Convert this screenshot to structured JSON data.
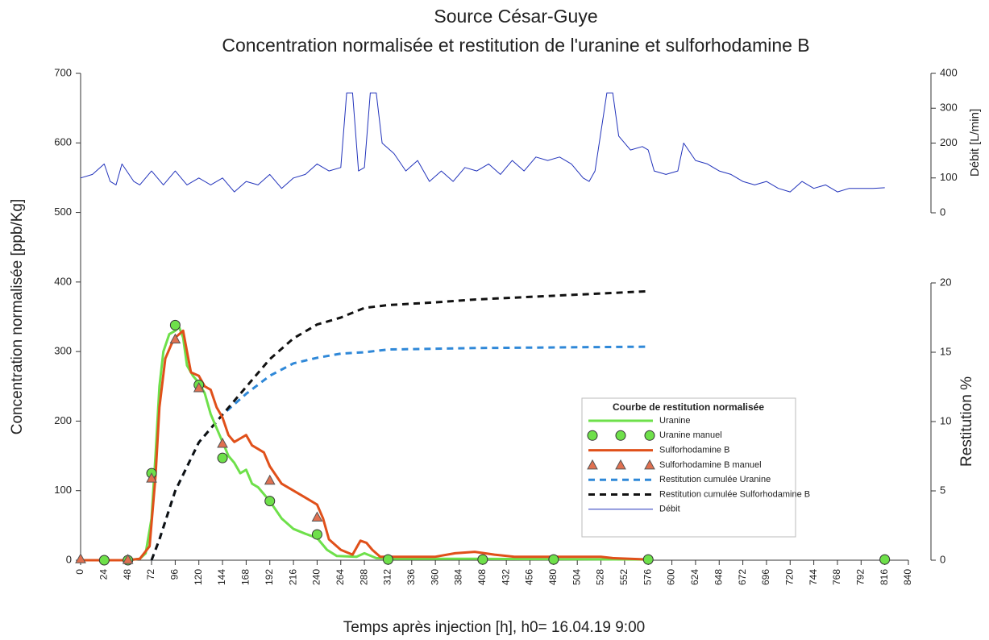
{
  "chart_data": {
    "type": "line",
    "title": "Source César-Guye",
    "subtitle": "Concentration normalisée et restitution de l'uranine et sulforhodamine B",
    "x_label": "Temps après injection [h], h0= 16.04.19 9:00",
    "y_label": "Concentration normalisée [ppb/Kg]",
    "y2_label": "Restitution %",
    "y3_label": "Débit [L/min]",
    "legend_title": "Courbe de restitution normalisée",
    "xlim": [
      0,
      840
    ],
    "xticks": [
      0,
      24,
      48,
      72,
      96,
      120,
      144,
      168,
      192,
      216,
      240,
      264,
      288,
      312,
      336,
      360,
      384,
      408,
      432,
      456,
      480,
      504,
      528,
      552,
      576,
      600,
      624,
      648,
      672,
      696,
      720,
      744,
      768,
      792,
      816,
      840
    ],
    "ylim": [
      0,
      700
    ],
    "yticks": [
      0,
      100,
      200,
      300,
      400,
      500,
      600,
      700
    ],
    "y2lim": [
      0,
      20
    ],
    "y2ticks": [
      0,
      5,
      10,
      15,
      20
    ],
    "y3lim": [
      0,
      400
    ],
    "y3ticks": [
      0,
      100,
      200,
      300,
      400
    ],
    "series": [
      {
        "name": "Uranine",
        "color": "#6ee04a",
        "style": "line",
        "x": [
          0,
          48,
          60,
          66,
          72,
          76,
          80,
          84,
          90,
          96,
          100,
          104,
          108,
          114,
          120,
          126,
          132,
          138,
          144,
          150,
          156,
          162,
          168,
          174,
          180,
          192,
          204,
          216,
          228,
          240,
          250,
          260,
          280,
          288,
          300,
          320,
          400,
          576
        ],
        "values": [
          0,
          0,
          2,
          10,
          60,
          150,
          250,
          300,
          325,
          330,
          335,
          320,
          280,
          265,
          255,
          240,
          210,
          190,
          170,
          150,
          140,
          125,
          130,
          110,
          105,
          85,
          60,
          45,
          38,
          32,
          15,
          6,
          5,
          10,
          3,
          2,
          2,
          1
        ]
      },
      {
        "name": "Uranine manuel",
        "color": "#6ee04a",
        "style": "circle",
        "x": [
          24,
          48,
          72,
          96,
          120,
          144,
          192,
          240,
          312,
          408,
          480,
          576,
          816
        ],
        "values": [
          0,
          0,
          125,
          338,
          252,
          147,
          85,
          37,
          1,
          1,
          1,
          1,
          1
        ]
      },
      {
        "name": "Sulforhodamine B",
        "color": "#e0501a",
        "style": "line",
        "x": [
          0,
          48,
          60,
          70,
          76,
          80,
          86,
          92,
          96,
          100,
          104,
          108,
          112,
          120,
          126,
          132,
          138,
          144,
          150,
          156,
          162,
          168,
          174,
          180,
          186,
          192,
          204,
          216,
          228,
          240,
          246,
          252,
          264,
          276,
          284,
          290,
          296,
          304,
          360,
          380,
          400,
          420,
          440,
          528,
          540,
          576
        ],
        "values": [
          0,
          0,
          2,
          20,
          120,
          220,
          290,
          310,
          320,
          325,
          330,
          300,
          270,
          265,
          250,
          245,
          220,
          205,
          180,
          170,
          175,
          180,
          165,
          160,
          155,
          135,
          110,
          100,
          90,
          80,
          60,
          30,
          15,
          8,
          28,
          25,
          15,
          5,
          5,
          10,
          12,
          8,
          5,
          5,
          3,
          1
        ]
      },
      {
        "name": "Sulforhodamine B manuel",
        "color": "#e07050",
        "style": "triangle",
        "x": [
          0,
          48,
          72,
          96,
          120,
          144,
          192,
          240
        ],
        "values": [
          2,
          1,
          118,
          318,
          248,
          168,
          115,
          62
        ]
      },
      {
        "name": "Restitution cumulée Uranine",
        "color": "#2f88d8",
        "style": "dashed",
        "axis": "y2",
        "x": [
          72,
          80,
          96,
          120,
          144,
          168,
          192,
          216,
          240,
          264,
          288,
          312,
          400,
          576
        ],
        "values": [
          0,
          1.5,
          5,
          8.5,
          10.5,
          12,
          13.3,
          14.2,
          14.6,
          14.9,
          15,
          15.2,
          15.3,
          15.4
        ]
      },
      {
        "name": "Restitution cumulée Sulforhodamine B",
        "color": "#111111",
        "style": "dashed",
        "axis": "y2",
        "x": [
          72,
          80,
          96,
          120,
          144,
          168,
          192,
          216,
          240,
          264,
          288,
          312,
          360,
          400,
          576
        ],
        "values": [
          0,
          1.5,
          5,
          8.5,
          10.5,
          12.5,
          14.5,
          16,
          17,
          17.5,
          18.2,
          18.4,
          18.6,
          18.8,
          19.4
        ]
      },
      {
        "name": "Débit",
        "color": "#2233bb",
        "style": "thin",
        "axis": "y3",
        "x": [
          0,
          12,
          24,
          30,
          36,
          42,
          54,
          60,
          72,
          84,
          96,
          108,
          120,
          132,
          144,
          156,
          168,
          180,
          192,
          204,
          216,
          228,
          240,
          252,
          264,
          270,
          276,
          282,
          288,
          294,
          300,
          306,
          318,
          330,
          342,
          354,
          366,
          378,
          390,
          402,
          414,
          426,
          438,
          450,
          462,
          474,
          486,
          498,
          510,
          516,
          522,
          534,
          540,
          546,
          558,
          570,
          576,
          582,
          594,
          606,
          612,
          624,
          636,
          648,
          660,
          672,
          684,
          696,
          708,
          720,
          732,
          744,
          756,
          768,
          780,
          792,
          804,
          816
        ],
        "values": [
          100,
          110,
          140,
          90,
          80,
          140,
          90,
          80,
          120,
          80,
          120,
          80,
          100,
          80,
          100,
          60,
          90,
          80,
          110,
          70,
          100,
          110,
          140,
          120,
          130,
          344,
          344,
          120,
          130,
          344,
          344,
          200,
          170,
          120,
          150,
          90,
          120,
          90,
          130,
          120,
          140,
          110,
          150,
          120,
          160,
          150,
          160,
          140,
          100,
          90,
          120,
          344,
          344,
          220,
          180,
          190,
          180,
          120,
          110,
          120,
          200,
          150,
          140,
          120,
          110,
          90,
          80,
          90,
          70,
          60,
          90,
          70,
          80,
          60,
          70,
          70,
          70,
          72
        ]
      }
    ]
  }
}
